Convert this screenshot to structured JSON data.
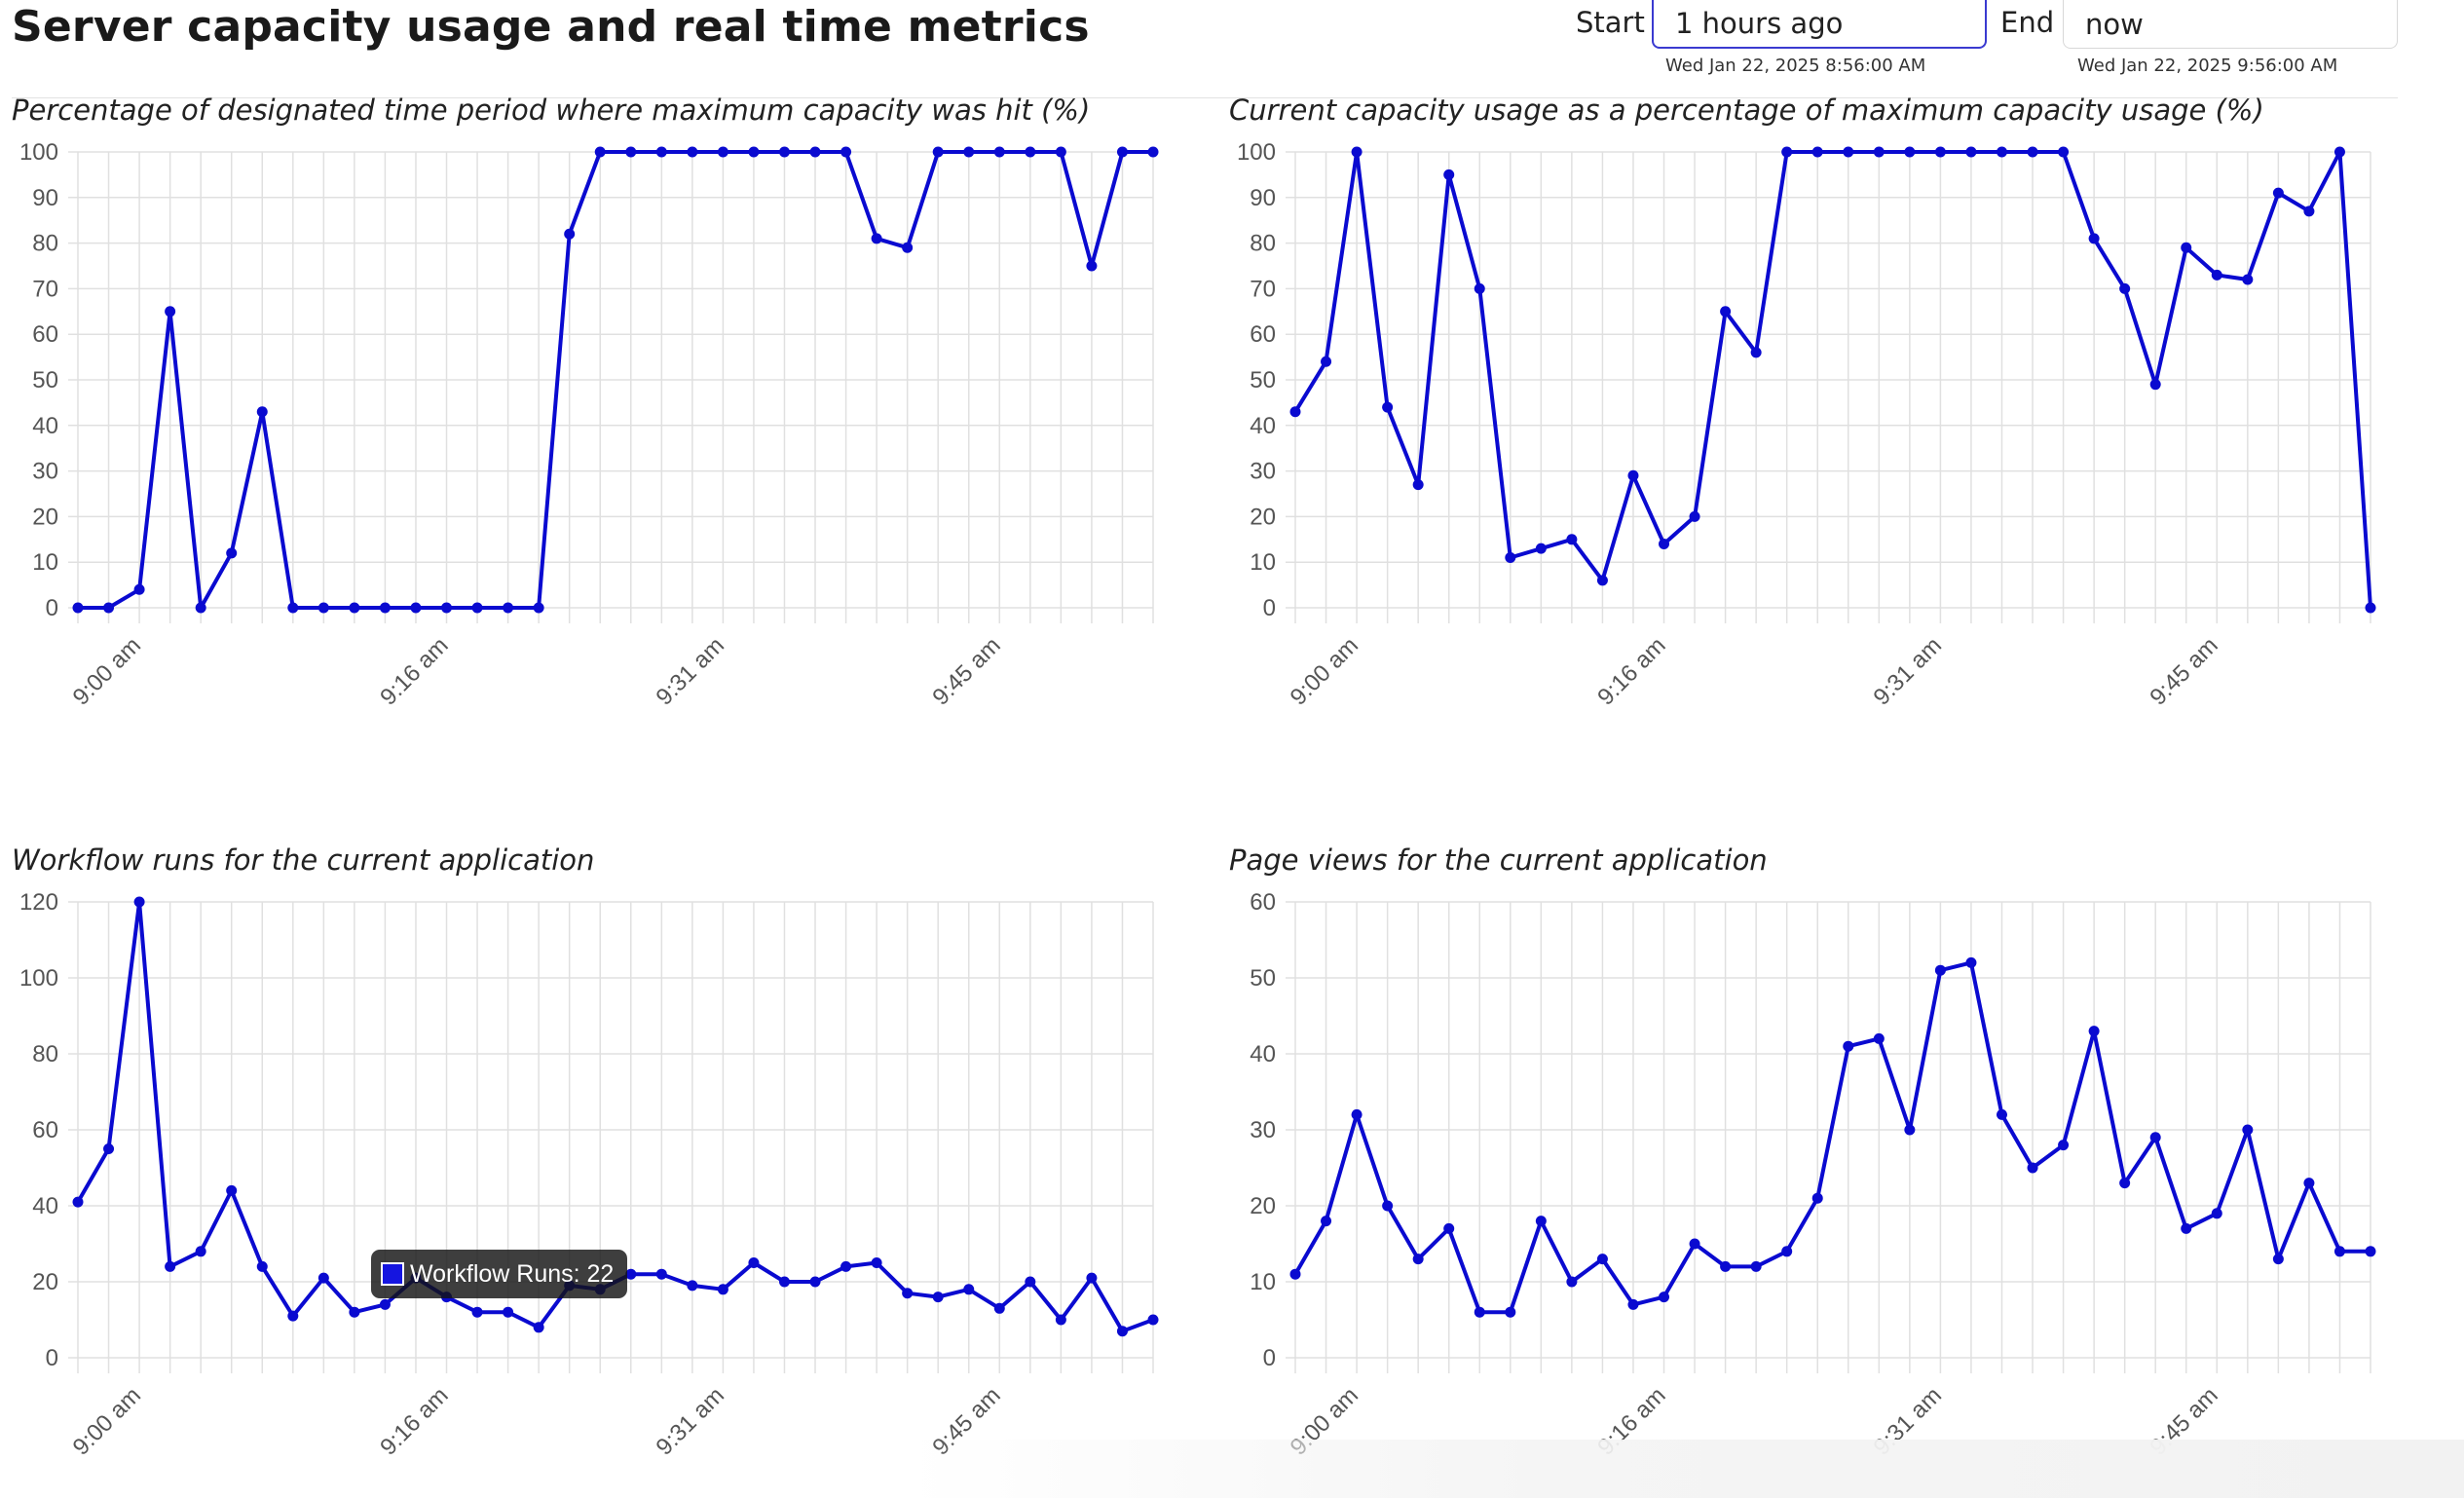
{
  "page": {
    "title": "Server capacity usage and real time metrics",
    "colors": {
      "series": "#0a0ad0",
      "grid": "#e0e0e0",
      "tick_text": "#555555"
    }
  },
  "range": {
    "start_label": "Start",
    "start_value": "1 hours ago",
    "start_date": "Wed Jan 22, 2025 8:56:00 AM",
    "end_label": "End",
    "end_value": "now",
    "end_date": "Wed Jan 22, 2025 9:56:00 AM"
  },
  "tooltip": {
    "text": "Workflow Runs: 22"
  },
  "chart_data": [
    {
      "type": "line",
      "title": "Percentage of designated time period where maximum capacity was hit (%)",
      "xlabel": "",
      "ylabel": "",
      "ylim": [
        0,
        100
      ],
      "yticks": [
        0,
        10,
        20,
        30,
        40,
        50,
        60,
        70,
        80,
        90,
        100
      ],
      "xtick_labels": [
        "9:00 am",
        "9:16 am",
        "9:31 am",
        "9:45 am"
      ],
      "grid": true,
      "legend": "none",
      "series": [
        {
          "values": [
            0,
            0,
            4,
            65,
            0,
            12,
            43,
            0,
            0,
            0,
            0,
            0,
            0,
            0,
            0,
            0,
            82,
            100,
            100,
            100,
            100,
            100,
            100,
            100,
            100,
            100,
            81,
            79,
            100,
            100,
            100,
            100,
            100,
            75,
            100,
            100
          ]
        }
      ]
    },
    {
      "type": "line",
      "title": "Current capacity usage as a percentage of maximum capacity usage (%)",
      "xlabel": "",
      "ylabel": "",
      "ylim": [
        0,
        100
      ],
      "yticks": [
        0,
        10,
        20,
        30,
        40,
        50,
        60,
        70,
        80,
        90,
        100
      ],
      "xtick_labels": [
        "9:00 am",
        "9:16 am",
        "9:31 am",
        "9:45 am"
      ],
      "grid": true,
      "legend": "none",
      "series": [
        {
          "values": [
            43,
            54,
            100,
            44,
            27,
            95,
            70,
            11,
            13,
            15,
            6,
            29,
            14,
            20,
            65,
            56,
            100,
            100,
            100,
            100,
            100,
            100,
            100,
            100,
            100,
            100,
            81,
            70,
            49,
            79,
            73,
            72,
            91,
            87,
            100,
            0
          ]
        }
      ]
    },
    {
      "type": "line",
      "title": "Workflow runs for the current application",
      "xlabel": "",
      "ylabel": "",
      "ylim": [
        0,
        120
      ],
      "yticks": [
        0,
        20,
        40,
        60,
        80,
        100,
        120
      ],
      "xtick_labels": [
        "9:00 am",
        "9:16 am",
        "9:31 am",
        "9:45 am"
      ],
      "grid": true,
      "legend": "none",
      "series": [
        {
          "name": "Workflow Runs",
          "values": [
            41,
            55,
            120,
            24,
            28,
            44,
            24,
            11,
            21,
            12,
            14,
            21,
            16,
            12,
            12,
            8,
            19,
            18,
            22,
            22,
            19,
            18,
            25,
            20,
            20,
            24,
            25,
            17,
            16,
            18,
            13,
            20,
            10,
            21,
            7,
            10
          ]
        }
      ]
    },
    {
      "type": "line",
      "title": "Page views for the current application",
      "xlabel": "",
      "ylabel": "",
      "ylim": [
        0,
        60
      ],
      "yticks": [
        0,
        10,
        20,
        30,
        40,
        50,
        60
      ],
      "xtick_labels": [
        "9:00 am",
        "9:16 am",
        "9:31 am",
        "9:45 am"
      ],
      "grid": true,
      "legend": "none",
      "series": [
        {
          "values": [
            11,
            18,
            32,
            20,
            13,
            17,
            6,
            6,
            18,
            10,
            13,
            7,
            8,
            15,
            12,
            12,
            14,
            21,
            41,
            42,
            30,
            51,
            52,
            32,
            25,
            28,
            43,
            23,
            29,
            17,
            19,
            30,
            13,
            23,
            14,
            14
          ]
        }
      ]
    }
  ]
}
